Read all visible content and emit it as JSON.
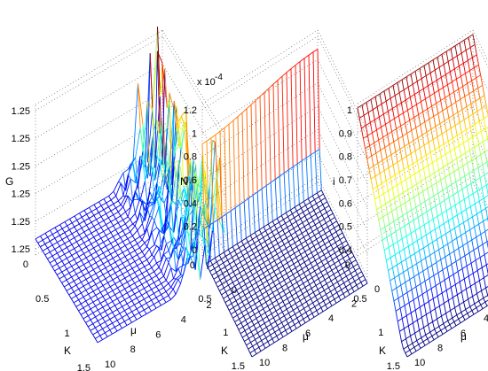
{
  "chart_data": [
    {
      "type": "surface",
      "zlabel": "G",
      "xlabel": "K",
      "ylabel": "μ",
      "z_ticks": [
        "1.25",
        "1.25",
        "1.25",
        "1.25",
        "1.25",
        "1.25"
      ],
      "x_ticks": [
        "0",
        "0.5",
        "1",
        "1.5"
      ],
      "y_ticks": [
        "0",
        "2",
        "4",
        "6",
        "8",
        "10"
      ],
      "xlim": [
        0,
        1.5
      ],
      "ylim": [
        0,
        10
      ],
      "surface": "mostly flat plane with irregular spikes along the small-μ side",
      "grid": true
    },
    {
      "type": "surface",
      "zlabel": "N",
      "xlabel": "K",
      "ylabel": "μ",
      "z_multiplier": "x 10",
      "z_exponent": "-4",
      "z_ticks": [
        "0",
        "0.2",
        "0.4",
        "0.6",
        "0.8",
        "1",
        "1.2"
      ],
      "x_ticks": [
        "0",
        "0.5",
        "1",
        "1.5"
      ],
      "y_ticks": [
        "0",
        "2",
        "4",
        "6",
        "8",
        "10"
      ],
      "xlim": [
        0,
        1.5
      ],
      "ylim": [
        0,
        10
      ],
      "zlim": [
        0,
        1.2
      ],
      "surface": "zero almost everywhere; rises steeply to about 1.05e-4 near K = 0",
      "grid": true
    },
    {
      "type": "surface",
      "zlabel": "i",
      "xlabel": "K",
      "ylabel": "μ",
      "z_ticks": [
        "0.4",
        "0.5",
        "0.6",
        "0.7",
        "0.8",
        "0.9",
        "1"
      ],
      "x_ticks": [
        "0",
        "0.5",
        "1",
        "1.5"
      ],
      "y_ticks": [
        "0",
        "2",
        "4",
        "6",
        "8",
        "10"
      ],
      "xlim": [
        0,
        1.5
      ],
      "ylim": [
        0,
        10
      ],
      "zlim": [
        0.3,
        1
      ],
      "surface": "decreases roughly linearly from about 1 at K = 0 to about 0.25 at K = 1.5; nearly constant in μ",
      "grid": true
    }
  ]
}
